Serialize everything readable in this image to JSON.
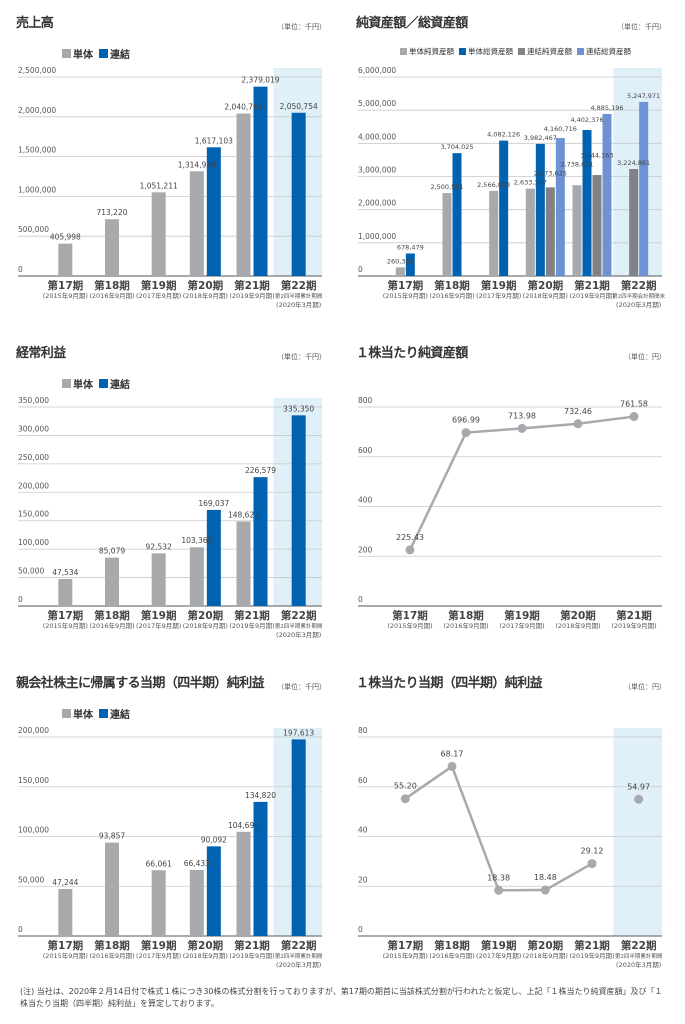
{
  "colors": {
    "tantai": "#a7a9ac",
    "renketsu": "#0062b1",
    "renketsu_net": "#808285",
    "renketsu_total": "#6f93d2",
    "highlight": "#dff0f9",
    "line": "#a7a9ac"
  },
  "chart_data": [
    {
      "type": "bar",
      "title": "売上高",
      "unit": "（単位：千円）",
      "ylim": [
        0,
        2500000
      ],
      "yticks": [
        "0",
        "500,000",
        "1,000,000",
        "1,500,000",
        "2,000,000",
        "2,500,000"
      ],
      "ytick_values": [
        0,
        500000,
        1000000,
        1500000,
        2000000,
        2500000
      ],
      "grid": true,
      "legend_position": "top-left",
      "highlight_index": 5,
      "categories": [
        {
          "name": "第17期",
          "sub": "(2015年9月期)"
        },
        {
          "name": "第18期",
          "sub": "(2016年9月期)"
        },
        {
          "name": "第19期",
          "sub": "(2017年9月期)"
        },
        {
          "name": "第20期",
          "sub": "(2018年9月期)"
        },
        {
          "name": "第21期",
          "sub": "(2019年9月期)"
        },
        {
          "name": "第22期",
          "sub": "第2四半期累計期間",
          "sub2": "(2020年3月期)"
        }
      ],
      "series": [
        {
          "name": "単体",
          "color": "#a7a9ac",
          "values": [
            405998,
            713220,
            1051211,
            1314934,
            2040761,
            null
          ]
        },
        {
          "name": "連結",
          "color": "#0062b1",
          "values": [
            null,
            null,
            null,
            1617103,
            2379019,
            2050754
          ]
        }
      ]
    },
    {
      "type": "bar",
      "title": "純資産額／総資産額",
      "unit": "（単位：千円）",
      "ylim": [
        0,
        6000000
      ],
      "yticks": [
        "0",
        "1,000,000",
        "2,000,000",
        "3,000,000",
        "4,000,000",
        "5,000,000",
        "6,000,000"
      ],
      "ytick_values": [
        0,
        1000000,
        2000000,
        3000000,
        4000000,
        5000000,
        6000000
      ],
      "grid": true,
      "legend_position": "top-left",
      "highlight_index": 5,
      "categories": [
        {
          "name": "第17期",
          "sub": "(2015年9月期)"
        },
        {
          "name": "第18期",
          "sub": "(2016年9月期)"
        },
        {
          "name": "第19期",
          "sub": "(2017年9月期)"
        },
        {
          "name": "第20期",
          "sub": "(2018年9月期)"
        },
        {
          "name": "第21期",
          "sub": "(2019年9月期)"
        },
        {
          "name": "第22期",
          "sub": "第2四半期会計期間末",
          "sub2": "(2020年3月期)"
        }
      ],
      "series": [
        {
          "name": "単体純資産額",
          "color": "#a7a9ac",
          "values": [
            260355,
            2500581,
            2566893,
            2633327,
            2738021,
            null
          ]
        },
        {
          "name": "単体総資産額",
          "color": "#0062b1",
          "values": [
            678479,
            3704025,
            4082126,
            3982467,
            4402376,
            null
          ]
        },
        {
          "name": "連結純資産額",
          "color": "#808285",
          "values": [
            null,
            null,
            null,
            2673625,
            3044163,
            3224861
          ]
        },
        {
          "name": "連結総資産額",
          "color": "#6f93d2",
          "values": [
            null,
            null,
            null,
            4160716,
            4885196,
            5247971
          ]
        }
      ]
    },
    {
      "type": "bar",
      "title": "経常利益",
      "unit": "（単位：千円）",
      "ylim": [
        0,
        350000
      ],
      "yticks": [
        "0",
        "50,000",
        "100,000",
        "150,000",
        "200,000",
        "250,000",
        "300,000",
        "350,000"
      ],
      "ytick_values": [
        0,
        50000,
        100000,
        150000,
        200000,
        250000,
        300000,
        350000
      ],
      "grid": true,
      "legend_position": "top-left",
      "highlight_index": 5,
      "categories": [
        {
          "name": "第17期",
          "sub": "(2015年9月期)"
        },
        {
          "name": "第18期",
          "sub": "(2016年9月期)"
        },
        {
          "name": "第19期",
          "sub": "(2017年9月期)"
        },
        {
          "name": "第20期",
          "sub": "(2018年9月期)"
        },
        {
          "name": "第21期",
          "sub": "(2019年9月期)"
        },
        {
          "name": "第22期",
          "sub": "第2四半期累計期間",
          "sub2": "(2020年3月期)"
        }
      ],
      "series": [
        {
          "name": "単体",
          "color": "#a7a9ac",
          "values": [
            47534,
            85079,
            92532,
            103365,
            148627,
            null
          ]
        },
        {
          "name": "連結",
          "color": "#0062b1",
          "values": [
            null,
            null,
            null,
            169037,
            226579,
            335350
          ]
        }
      ]
    },
    {
      "type": "line",
      "title": "１株当たり純資産額",
      "unit": "（単位：円）",
      "ylim": [
        0,
        800
      ],
      "yticks": [
        "0",
        "200",
        "400",
        "600",
        "800"
      ],
      "ytick_values": [
        0,
        200,
        400,
        600,
        800
      ],
      "grid": true,
      "highlight_index": null,
      "categories": [
        {
          "name": "第17期",
          "sub": "(2015年9月期)"
        },
        {
          "name": "第18期",
          "sub": "(2016年9月期)"
        },
        {
          "name": "第19期",
          "sub": "(2017年9月期)"
        },
        {
          "name": "第20期",
          "sub": "(2018年9月期)"
        },
        {
          "name": "第21期",
          "sub": "(2019年9月期)"
        }
      ],
      "series": [
        {
          "color": "#a7a9ac",
          "values": [
            225.43,
            696.99,
            713.98,
            732.46,
            761.58
          ]
        }
      ]
    },
    {
      "type": "bar",
      "title": "親会社株主に帰属する当期（四半期）純利益",
      "unit": "（単位：千円）",
      "ylim": [
        0,
        200000
      ],
      "yticks": [
        "0",
        "50,000",
        "100,000",
        "150,000",
        "200,000"
      ],
      "ytick_values": [
        0,
        50000,
        100000,
        150000,
        200000
      ],
      "grid": true,
      "legend_position": "top-left",
      "highlight_index": 5,
      "categories": [
        {
          "name": "第17期",
          "sub": "(2015年9月期)"
        },
        {
          "name": "第18期",
          "sub": "(2016年9月期)"
        },
        {
          "name": "第19期",
          "sub": "(2017年9月期)"
        },
        {
          "name": "第20期",
          "sub": "(2018年9月期)"
        },
        {
          "name": "第21期",
          "sub": "(2019年9月期)"
        },
        {
          "name": "第22期",
          "sub": "第2四半期累計期間",
          "sub2": "(2020年3月期)"
        }
      ],
      "series": [
        {
          "name": "単体",
          "color": "#a7a9ac",
          "values": [
            47244,
            93857,
            66061,
            66433,
            104694,
            null
          ]
        },
        {
          "name": "連結",
          "color": "#0062b1",
          "values": [
            null,
            null,
            null,
            90092,
            134820,
            197613
          ]
        }
      ]
    },
    {
      "type": "line",
      "title": "１株当たり当期（四半期）純利益",
      "unit": "（単位：円）",
      "ylim": [
        0,
        80
      ],
      "yticks": [
        "0",
        "20",
        "40",
        "60",
        "80"
      ],
      "ytick_values": [
        0,
        20,
        40,
        60,
        80
      ],
      "grid": true,
      "highlight_index": 5,
      "categories": [
        {
          "name": "第17期",
          "sub": "(2015年9月期)"
        },
        {
          "name": "第18期",
          "sub": "(2016年9月期)"
        },
        {
          "name": "第19期",
          "sub": "(2017年9月期)"
        },
        {
          "name": "第20期",
          "sub": "(2018年9月期)"
        },
        {
          "name": "第21期",
          "sub": "(2019年9月期)"
        },
        {
          "name": "第22期",
          "sub": "第2四半期累計期間",
          "sub2": "(2020年3月期)"
        }
      ],
      "series": [
        {
          "color": "#a7a9ac",
          "values": [
            55.2,
            68.17,
            18.38,
            18.48,
            29.12,
            54.97
          ]
        }
      ]
    }
  ],
  "footnote": "(注) 当社は、2020年２月14日付で株式１株につき30株の株式分割を行っておりますが、第17期の期首に当該株式分割が行われたと仮定し、上記「１株当たり純資産額」及び「１株当たり当期（四半期）純利益」を算定しております。"
}
